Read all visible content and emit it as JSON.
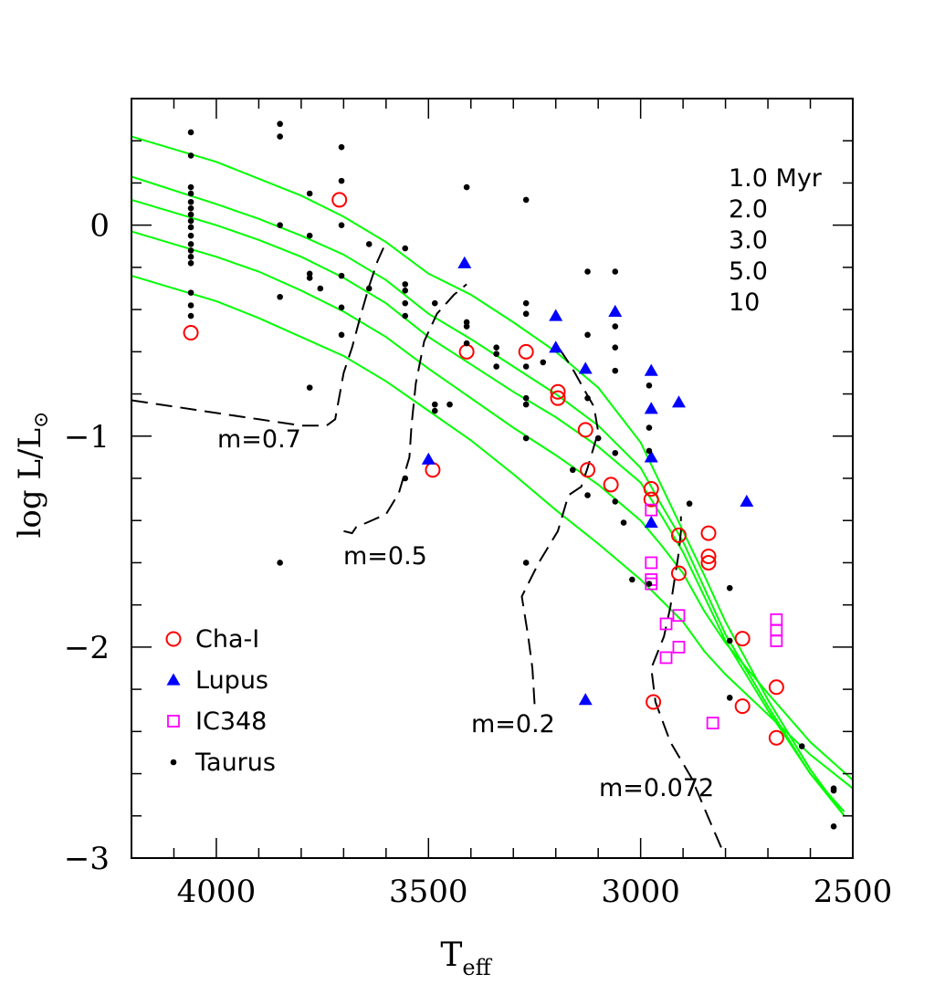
{
  "chart_data": {
    "type": "scatter",
    "title": "",
    "xlabel": "T",
    "xlabel_sub": "eff",
    "ylabel": "log L/L",
    "ylabel_sub": "⊙",
    "xlim": [
      4200,
      2500
    ],
    "ylim": [
      -3,
      0.6
    ],
    "x_ticks": [
      {
        "value": 4000,
        "label": "4000"
      },
      {
        "value": 3500,
        "label": "3500"
      },
      {
        "value": 3000,
        "label": "3000"
      },
      {
        "value": 2500,
        "label": "2500"
      }
    ],
    "y_ticks": [
      {
        "value": 0,
        "label": "0"
      },
      {
        "value": -1,
        "label": "−1"
      },
      {
        "value": -2,
        "label": "−2"
      },
      {
        "value": -3,
        "label": "−3"
      }
    ],
    "grid": false,
    "legend_position": "bottom-left",
    "isochrone_labels": [
      "1.0  Myr",
      "2.0",
      "3.0",
      "5.0",
      "10"
    ],
    "series": [
      {
        "name": "Cha-I",
        "marker": "open-circle",
        "color": "#ff0000",
        "points": [
          [
            4060,
            -0.51
          ],
          [
            3710,
            0.12
          ],
          [
            3490,
            -1.16
          ],
          [
            3410,
            -0.6
          ],
          [
            3270,
            -0.6
          ],
          [
            3195,
            -0.79
          ],
          [
            3195,
            -0.82
          ],
          [
            3130,
            -0.97
          ],
          [
            3125,
            -1.16
          ],
          [
            3070,
            -1.23
          ],
          [
            2975,
            -1.25
          ],
          [
            2975,
            -1.3
          ],
          [
            2970,
            -2.26
          ],
          [
            2910,
            -1.47
          ],
          [
            2910,
            -1.65
          ],
          [
            2840,
            -1.46
          ],
          [
            2840,
            -1.57
          ],
          [
            2840,
            -1.6
          ],
          [
            2760,
            -1.96
          ],
          [
            2760,
            -2.28
          ],
          [
            2680,
            -2.19
          ],
          [
            2680,
            -2.43
          ]
        ]
      },
      {
        "name": "Lupus",
        "marker": "filled-triangle",
        "color": "#0000ff",
        "points": [
          [
            3500,
            -1.11
          ],
          [
            3415,
            -0.18
          ],
          [
            3200,
            -0.43
          ],
          [
            3200,
            -0.58
          ],
          [
            3130,
            -0.68
          ],
          [
            3060,
            -0.41
          ],
          [
            2975,
            -0.69
          ],
          [
            2975,
            -0.87
          ],
          [
            2975,
            -1.1
          ],
          [
            2975,
            -1.41
          ],
          [
            2910,
            -0.84
          ],
          [
            2750,
            -1.31
          ],
          [
            3130,
            -2.25
          ]
        ]
      },
      {
        "name": "IC348",
        "marker": "open-square",
        "color": "#ff00ff",
        "points": [
          [
            2975,
            -1.35
          ],
          [
            2975,
            -1.6
          ],
          [
            2975,
            -1.68
          ],
          [
            2975,
            -1.7
          ],
          [
            2940,
            -1.89
          ],
          [
            2940,
            -2.05
          ],
          [
            2910,
            -1.85
          ],
          [
            2910,
            -2.0
          ],
          [
            2830,
            -2.36
          ],
          [
            2680,
            -1.87
          ],
          [
            2680,
            -1.92
          ],
          [
            2680,
            -1.97
          ]
        ]
      },
      {
        "name": "Taurus",
        "marker": "filled-dot",
        "color": "#000000",
        "points": [
          [
            4060,
            0.44
          ],
          [
            4060,
            0.33
          ],
          [
            4060,
            0.18
          ],
          [
            4060,
            0.15
          ],
          [
            4060,
            0.11
          ],
          [
            4060,
            0.08
          ],
          [
            4060,
            0.05
          ],
          [
            4060,
            0.02
          ],
          [
            4060,
            -0.01
          ],
          [
            4060,
            -0.05
          ],
          [
            4060,
            -0.09
          ],
          [
            4060,
            -0.12
          ],
          [
            4060,
            -0.15
          ],
          [
            4060,
            -0.18
          ],
          [
            4060,
            -0.32
          ],
          [
            4060,
            -0.38
          ],
          [
            4060,
            -0.43
          ],
          [
            3850,
            0.48
          ],
          [
            3850,
            0.42
          ],
          [
            3850,
            0.0
          ],
          [
            3850,
            -0.34
          ],
          [
            3850,
            -1.6
          ],
          [
            3780,
            0.15
          ],
          [
            3780,
            -0.05
          ],
          [
            3780,
            -0.23
          ],
          [
            3780,
            -0.25
          ],
          [
            3780,
            -0.77
          ],
          [
            3755,
            -0.3
          ],
          [
            3705,
            0.37
          ],
          [
            3705,
            0.21
          ],
          [
            3705,
            0.0
          ],
          [
            3705,
            -0.24
          ],
          [
            3705,
            -0.39
          ],
          [
            3705,
            -0.52
          ],
          [
            3640,
            -0.09
          ],
          [
            3640,
            -0.3
          ],
          [
            3555,
            -0.11
          ],
          [
            3555,
            -0.28
          ],
          [
            3555,
            -0.31
          ],
          [
            3555,
            -0.37
          ],
          [
            3555,
            -0.43
          ],
          [
            3555,
            -1.2
          ],
          [
            3485,
            -0.37
          ],
          [
            3485,
            -0.85
          ],
          [
            3485,
            -0.88
          ],
          [
            3450,
            -0.85
          ],
          [
            3410,
            0.18
          ],
          [
            3410,
            -0.46
          ],
          [
            3410,
            -0.48
          ],
          [
            3410,
            -0.56
          ],
          [
            3340,
            -0.58
          ],
          [
            3340,
            -0.61
          ],
          [
            3340,
            -0.67
          ],
          [
            3270,
            0.12
          ],
          [
            3270,
            -0.37
          ],
          [
            3270,
            -0.42
          ],
          [
            3270,
            -0.67
          ],
          [
            3270,
            -0.82
          ],
          [
            3270,
            -0.85
          ],
          [
            3270,
            -1.01
          ],
          [
            3270,
            -1.6
          ],
          [
            3230,
            -0.65
          ],
          [
            3160,
            -1.16
          ],
          [
            3125,
            -0.22
          ],
          [
            3125,
            -0.52
          ],
          [
            3125,
            -0.82
          ],
          [
            3125,
            -1.28
          ],
          [
            3100,
            -1.01
          ],
          [
            3060,
            -0.22
          ],
          [
            3060,
            -0.48
          ],
          [
            3060,
            -0.58
          ],
          [
            3060,
            -0.69
          ],
          [
            3060,
            -1.08
          ],
          [
            3060,
            -1.31
          ],
          [
            3040,
            -1.41
          ],
          [
            3020,
            -1.68
          ],
          [
            2980,
            -0.76
          ],
          [
            2980,
            -0.96
          ],
          [
            2980,
            -1.07
          ],
          [
            2980,
            -1.7
          ],
          [
            2885,
            -1.32
          ],
          [
            2790,
            -1.72
          ],
          [
            2790,
            -1.97
          ],
          [
            2790,
            -2.24
          ],
          [
            2620,
            -2.47
          ],
          [
            2545,
            -2.68
          ],
          [
            2545,
            -2.85
          ],
          [
            2545,
            -2.67
          ]
        ]
      }
    ],
    "isochrones": [
      {
        "name": "1.0 Myr",
        "color": "#00ff00",
        "points": [
          [
            4200,
            0.42
          ],
          [
            4000,
            0.3
          ],
          [
            3900,
            0.22
          ],
          [
            3800,
            0.14
          ],
          [
            3700,
            0.04
          ],
          [
            3600,
            -0.08
          ],
          [
            3500,
            -0.23
          ],
          [
            3400,
            -0.33
          ],
          [
            3300,
            -0.46
          ],
          [
            3200,
            -0.6
          ],
          [
            3100,
            -0.77
          ],
          [
            3000,
            -1.03
          ],
          [
            2950,
            -1.24
          ],
          [
            2900,
            -1.45
          ],
          [
            2850,
            -1.66
          ],
          [
            2800,
            -1.88
          ],
          [
            2700,
            -2.25
          ],
          [
            2600,
            -2.58
          ],
          [
            2520,
            -2.8
          ]
        ]
      },
      {
        "name": "2.0",
        "color": "#00ff00",
        "points": [
          [
            4200,
            0.23
          ],
          [
            4000,
            0.1
          ],
          [
            3900,
            0.03
          ],
          [
            3800,
            -0.05
          ],
          [
            3700,
            -0.14
          ],
          [
            3600,
            -0.26
          ],
          [
            3500,
            -0.42
          ],
          [
            3400,
            -0.54
          ],
          [
            3300,
            -0.67
          ],
          [
            3200,
            -0.8
          ],
          [
            3100,
            -0.95
          ],
          [
            3000,
            -1.15
          ],
          [
            2950,
            -1.33
          ],
          [
            2900,
            -1.5
          ],
          [
            2850,
            -1.72
          ],
          [
            2800,
            -1.94
          ],
          [
            2700,
            -2.28
          ],
          [
            2600,
            -2.6
          ],
          [
            2520,
            -2.8
          ]
        ]
      },
      {
        "name": "3.0",
        "color": "#00ff00",
        "points": [
          [
            4200,
            0.12
          ],
          [
            4000,
            0.0
          ],
          [
            3900,
            -0.07
          ],
          [
            3800,
            -0.15
          ],
          [
            3700,
            -0.25
          ],
          [
            3600,
            -0.37
          ],
          [
            3500,
            -0.53
          ],
          [
            3400,
            -0.66
          ],
          [
            3300,
            -0.79
          ],
          [
            3200,
            -0.91
          ],
          [
            3100,
            -1.05
          ],
          [
            3000,
            -1.22
          ],
          [
            2950,
            -1.38
          ],
          [
            2900,
            -1.55
          ],
          [
            2850,
            -1.76
          ],
          [
            2800,
            -1.97
          ],
          [
            2700,
            -2.3
          ],
          [
            2600,
            -2.6
          ],
          [
            2520,
            -2.78
          ]
        ]
      },
      {
        "name": "5.0",
        "color": "#00ff00",
        "points": [
          [
            4200,
            -0.03
          ],
          [
            4000,
            -0.15
          ],
          [
            3900,
            -0.22
          ],
          [
            3800,
            -0.31
          ],
          [
            3700,
            -0.41
          ],
          [
            3600,
            -0.53
          ],
          [
            3500,
            -0.68
          ],
          [
            3400,
            -0.82
          ],
          [
            3300,
            -0.96
          ],
          [
            3200,
            -1.09
          ],
          [
            3100,
            -1.23
          ],
          [
            3000,
            -1.4
          ],
          [
            2950,
            -1.52
          ],
          [
            2900,
            -1.65
          ],
          [
            2850,
            -1.83
          ],
          [
            2800,
            -1.98
          ],
          [
            2700,
            -2.22
          ],
          [
            2600,
            -2.45
          ],
          [
            2500,
            -2.63
          ]
        ]
      },
      {
        "name": "10",
        "color": "#00ff00",
        "points": [
          [
            4200,
            -0.24
          ],
          [
            4000,
            -0.36
          ],
          [
            3900,
            -0.44
          ],
          [
            3800,
            -0.53
          ],
          [
            3700,
            -0.62
          ],
          [
            3600,
            -0.74
          ],
          [
            3500,
            -0.88
          ],
          [
            3400,
            -1.02
          ],
          [
            3300,
            -1.18
          ],
          [
            3200,
            -1.35
          ],
          [
            3100,
            -1.51
          ],
          [
            3000,
            -1.68
          ],
          [
            2950,
            -1.78
          ],
          [
            2900,
            -1.88
          ],
          [
            2850,
            -2.02
          ],
          [
            2800,
            -2.13
          ],
          [
            2700,
            -2.32
          ],
          [
            2600,
            -2.51
          ],
          [
            2500,
            -2.67
          ]
        ]
      }
    ],
    "tracks": [
      {
        "label": "m=0.7",
        "color": "#000000",
        "points": [
          [
            4200,
            -0.83
          ],
          [
            4100,
            -0.86
          ],
          [
            4000,
            -0.89
          ],
          [
            3900,
            -0.92
          ],
          [
            3800,
            -0.95
          ],
          [
            3740,
            -0.95
          ],
          [
            3720,
            -0.92
          ],
          [
            3700,
            -0.7
          ],
          [
            3680,
            -0.58
          ],
          [
            3660,
            -0.43
          ],
          [
            3640,
            -0.29
          ],
          [
            3620,
            -0.17
          ],
          [
            3600,
            -0.08
          ]
        ]
      },
      {
        "label": "m=0.5",
        "color": "#000000",
        "points": [
          [
            3700,
            -1.45
          ],
          [
            3680,
            -1.46
          ],
          [
            3670,
            -1.43
          ],
          [
            3645,
            -1.41
          ],
          [
            3600,
            -1.37
          ],
          [
            3570,
            -1.27
          ],
          [
            3545,
            -1.1
          ],
          [
            3540,
            -0.95
          ],
          [
            3530,
            -0.75
          ],
          [
            3510,
            -0.55
          ],
          [
            3480,
            -0.42
          ],
          [
            3440,
            -0.33
          ],
          [
            3410,
            -0.28
          ]
        ]
      },
      {
        "label": "m=0.2",
        "color": "#000000",
        "points": [
          [
            3250,
            -2.27
          ],
          [
            3255,
            -2.1
          ],
          [
            3265,
            -1.95
          ],
          [
            3280,
            -1.76
          ],
          [
            3240,
            -1.6
          ],
          [
            3195,
            -1.45
          ],
          [
            3170,
            -1.28
          ],
          [
            3140,
            -1.24
          ],
          [
            3125,
            -1.15
          ],
          [
            3100,
            -0.98
          ],
          [
            3110,
            -0.86
          ],
          [
            3130,
            -0.79
          ],
          [
            3155,
            -0.7
          ],
          [
            3170,
            -0.65
          ],
          [
            3200,
            -0.56
          ]
        ]
      },
      {
        "label": "m=0.072",
        "color": "#000000",
        "points": [
          [
            2810,
            -2.95
          ],
          [
            2840,
            -2.81
          ],
          [
            2880,
            -2.62
          ],
          [
            2930,
            -2.45
          ],
          [
            2965,
            -2.26
          ],
          [
            2975,
            -2.1
          ],
          [
            2945,
            -1.95
          ],
          [
            2930,
            -1.81
          ],
          [
            2920,
            -1.68
          ],
          [
            2910,
            -1.55
          ],
          [
            2905,
            -1.45
          ],
          [
            2905,
            -1.38
          ]
        ]
      }
    ]
  }
}
